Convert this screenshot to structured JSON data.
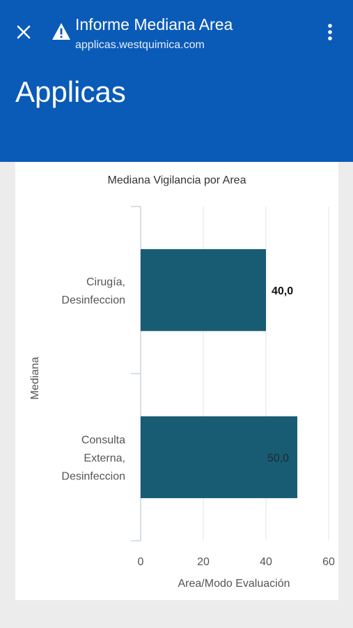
{
  "appbar": {
    "title": "Informe Mediana Area",
    "url": "applicas.westquimica.com",
    "close_icon": "close-icon",
    "warning_icon": "warning-icon",
    "menu_icon": "more-vert-icon",
    "color": "#0a5bb8"
  },
  "header": {
    "app_name": "Applicas"
  },
  "chart_data": {
    "type": "bar",
    "orientation": "horizontal",
    "title": "Mediana Vigilancia por Area",
    "xlabel": "Area/Modo Evaluación",
    "ylabel": "Mediana",
    "categories": [
      "Cirugía, Desinfeccion",
      "Consulta Externa, Desinfeccion"
    ],
    "category_lines": [
      [
        "Cirugía,",
        "Desinfeccion"
      ],
      [
        "Consulta",
        "Externa,",
        "Desinfeccion"
      ]
    ],
    "values": [
      40,
      50
    ],
    "value_labels": [
      "40,0",
      "50,0"
    ],
    "xlim": [
      0,
      60
    ],
    "xticks": [
      "0",
      "20",
      "40",
      "60"
    ],
    "grid": true,
    "bar_color": "#175c73"
  }
}
